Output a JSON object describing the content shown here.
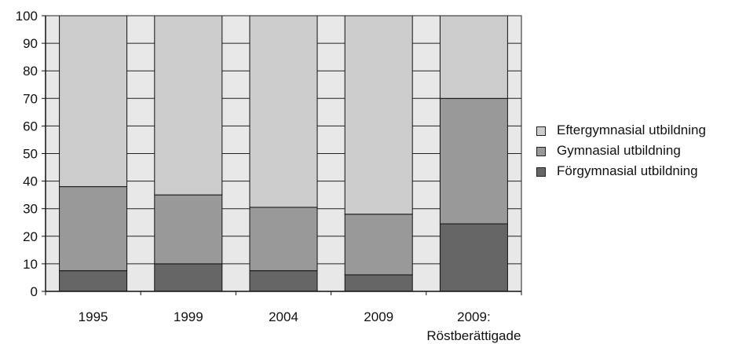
{
  "chart_data": {
    "type": "bar",
    "stacked": true,
    "categories": [
      "1995",
      "1999",
      "2004",
      "2009",
      "2009:\nRöstberättigade"
    ],
    "series": [
      {
        "name": "Förgymnasial utbildning",
        "values": [
          7.5,
          10,
          7.5,
          6,
          24.5
        ],
        "color": "#666666"
      },
      {
        "name": "Gymnasial utbildning",
        "values": [
          30.5,
          25,
          23,
          22,
          45.5
        ],
        "color": "#999999"
      },
      {
        "name": "Eftergymnasial utbildning",
        "values": [
          62,
          65,
          69.5,
          72,
          30
        ],
        "color": "#cccccc"
      }
    ],
    "ylim": [
      0,
      100
    ],
    "yticks": [
      "0",
      "10",
      "20",
      "30",
      "40",
      "50",
      "60",
      "70",
      "80",
      "90",
      "100"
    ],
    "grid": true,
    "plot_background": "#e8e8e8",
    "legend_position": "right",
    "legend_order": [
      "Eftergymnasial utbildning",
      "Gymnasial utbildning",
      "Förgymnasial utbildning"
    ]
  }
}
